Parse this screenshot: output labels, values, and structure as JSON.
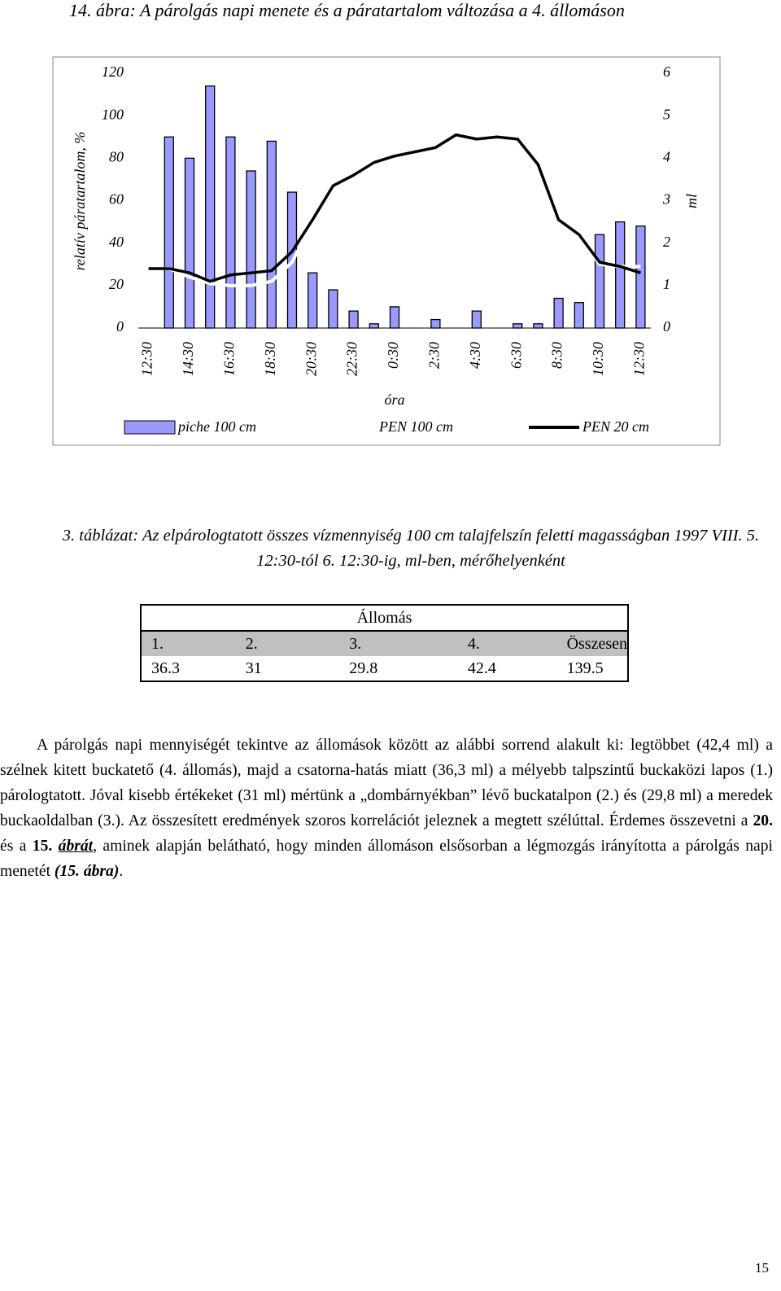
{
  "chart_data": {
    "type": "bar",
    "title": "14. ábra: A párolgás napi menete és a páratartalom változása a 4. állomáson",
    "categories": [
      "12:30",
      null,
      "14:30",
      null,
      "16:30",
      null,
      "18:30",
      null,
      "20:30",
      null,
      "22:30",
      null,
      "0:30",
      null,
      "2:30",
      null,
      "4:30",
      null,
      "6:30",
      null,
      "8:30",
      null,
      "10:30",
      null,
      "12:30"
    ],
    "xlabel": "óra",
    "ylabel": "relatív páratartalom, %",
    "y2label": "ml",
    "ylim": [
      0,
      120
    ],
    "yticks": [
      0,
      20,
      40,
      60,
      80,
      100,
      120
    ],
    "y2lim": [
      0,
      6
    ],
    "y2ticks": [
      0,
      1,
      2,
      3,
      4,
      5,
      6
    ],
    "series": [
      {
        "name": "piche 100 cm",
        "type": "bar",
        "axis": "y2",
        "color": "#9999ff",
        "values": [
          null,
          4.5,
          4.0,
          5.7,
          4.5,
          3.7,
          4.4,
          3.2,
          1.3,
          0.9,
          0.4,
          0.1,
          0.5,
          0,
          0.2,
          0,
          0.4,
          0,
          0.1,
          0.1,
          0.7,
          0.6,
          2.2,
          2.5,
          2.4
        ]
      },
      {
        "name": "PEN 100 cm",
        "type": "line",
        "color": "#ffffff",
        "values": [
          28,
          28,
          24,
          21,
          20,
          20,
          22,
          31,
          50,
          67,
          72,
          78,
          81,
          83,
          85,
          91,
          89,
          90,
          89,
          77,
          51,
          44,
          30,
          29,
          29
        ]
      },
      {
        "name": "PEN 20 cm",
        "type": "line",
        "color": "#000000",
        "values": [
          28,
          28,
          26,
          22,
          25,
          26,
          27,
          36,
          51,
          67,
          72,
          78,
          81,
          83,
          85,
          91,
          89,
          90,
          89,
          77,
          51,
          44,
          31,
          29,
          26
        ]
      }
    ]
  },
  "table_caption": "3. táblázat: Az elpárologtatott összes vízmennyiség 100 cm talajfelszín feletti magasságban 1997 VIII. 5. 12:30-tól  6. 12:30-ig, ml-ben, mérőhelyenként",
  "table": {
    "title": "Állomás",
    "header": [
      "1.",
      "2.",
      "3.",
      "4.",
      "Összesen"
    ],
    "rows": [
      [
        "36.3",
        "31",
        "29.8",
        "42.4",
        "139.5"
      ]
    ]
  },
  "paragraph": {
    "runs": [
      "A párolgás napi mennyiségét tekintve az állomások között az alábbi sorrend alakult ki: legtöbbet (42,4 ml) a szélnek kitett buckatető (4. állomás), majd a csatorna-hatás miatt (36,3 ml) a mélyebb talpszintű buckaközi lapos (1.) párologtatott. Jóval kisebb értékeket (31 ml) mértünk a „dombárnyékban” lévő buckatalpon (2.) és (29,8 ml) a meredek buckaoldalban (3.). Az összesített eredmények szoros korrelációt jeleznek a megtett szélúttal. Érdemes összevetni a ",
      "20.",
      " és a ",
      "15. ",
      "ábrát",
      ", aminek alapján belátható, hogy minden állomáson elsősorban a légmozgás irányította a párolgás napi menetét ",
      "(15. ábra)",
      "."
    ]
  },
  "page_number": "15"
}
